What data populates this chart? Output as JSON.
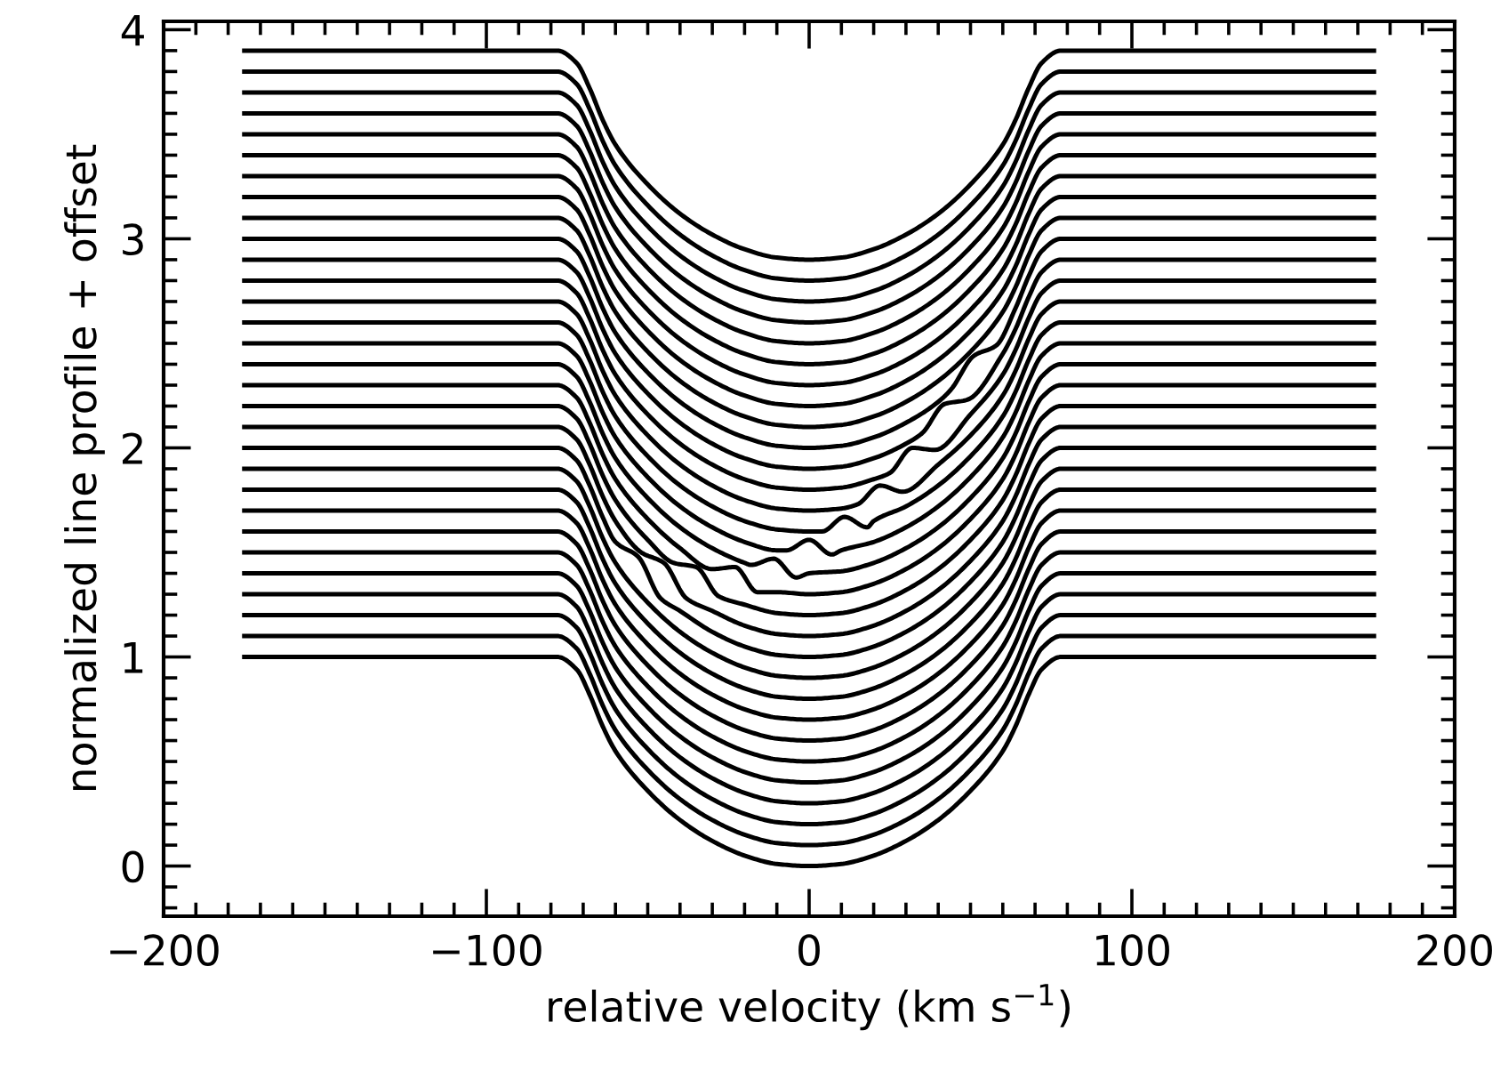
{
  "chart_data": {
    "type": "line",
    "xlabel": "relative velocity (km s$^{−1}$)",
    "ylabel": "normalized line profile + offset",
    "xlim": [
      -200,
      200
    ],
    "ylim": [
      -0.24,
      4.04
    ],
    "grid": false,
    "line_style": "solid",
    "xticks": [
      -200,
      {
        "value": -190,
        "label": null
      },
      {
        "value": -180,
        "label": null
      },
      {
        "value": -170,
        "label": null
      },
      {
        "value": -160,
        "label": null
      },
      {
        "value": -150,
        "label": null
      },
      {
        "value": -140,
        "label": null
      },
      {
        "value": -130,
        "label": null
      },
      {
        "value": -120,
        "label": null
      },
      {
        "value": -110,
        "label": null
      },
      -100,
      {
        "value": -90,
        "label": null
      },
      {
        "value": -80,
        "label": null
      },
      {
        "value": -70,
        "label": null
      },
      {
        "value": -60,
        "label": null
      },
      {
        "value": -50,
        "label": null
      },
      {
        "value": -40,
        "label": null
      },
      {
        "value": -30,
        "label": null
      },
      {
        "value": -20,
        "label": null
      },
      {
        "value": -10,
        "label": null
      },
      0,
      {
        "value": 10,
        "label": null
      },
      {
        "value": 20,
        "label": null
      },
      {
        "value": 30,
        "label": null
      },
      {
        "value": 40,
        "label": null
      },
      {
        "value": 50,
        "label": null
      },
      {
        "value": 60,
        "label": null
      },
      {
        "value": 70,
        "label": null
      },
      {
        "value": 80,
        "label": null
      },
      {
        "value": 90,
        "label": null
      },
      100,
      {
        "value": 110,
        "label": null
      },
      {
        "value": 120,
        "label": null
      },
      {
        "value": 130,
        "label": null
      },
      {
        "value": 140,
        "label": null
      },
      {
        "value": 150,
        "label": null
      },
      {
        "value": 160,
        "label": null
      },
      {
        "value": 170,
        "label": null
      },
      {
        "value": 180,
        "label": null
      },
      {
        "value": 190,
        "label": null
      },
      200
    ],
    "yticks": [
      {
        "value": -0.2,
        "label": null
      },
      {
        "value": -0.1,
        "label": null
      },
      0,
      {
        "value": 0.1,
        "label": null
      },
      {
        "value": 0.2,
        "label": null
      },
      {
        "value": 0.3,
        "label": null
      },
      {
        "value": 0.4,
        "label": null
      },
      {
        "value": 0.5,
        "label": null
      },
      {
        "value": 0.6,
        "label": null
      },
      {
        "value": 0.7,
        "label": null
      },
      {
        "value": 0.8,
        "label": null
      },
      {
        "value": 0.9,
        "label": null
      },
      1,
      {
        "value": 1.1,
        "label": null
      },
      {
        "value": 1.2,
        "label": null
      },
      {
        "value": 1.3,
        "label": null
      },
      {
        "value": 1.4,
        "label": null
      },
      {
        "value": 1.5,
        "label": null
      },
      {
        "value": 1.6,
        "label": null
      },
      {
        "value": 1.7,
        "label": null
      },
      {
        "value": 1.8,
        "label": null
      },
      {
        "value": 1.9,
        "label": null
      },
      2,
      {
        "value": 2.1,
        "label": null
      },
      {
        "value": 2.2,
        "label": null
      },
      {
        "value": 2.3,
        "label": null
      },
      {
        "value": 2.4,
        "label": null
      },
      {
        "value": 2.5,
        "label": null
      },
      {
        "value": 2.6,
        "label": null
      },
      {
        "value": 2.7,
        "label": null
      },
      {
        "value": 2.8,
        "label": null
      },
      {
        "value": 2.9,
        "label": null
      },
      3,
      {
        "value": 3.1,
        "label": null
      },
      {
        "value": 3.2,
        "label": null
      },
      {
        "value": 3.3,
        "label": null
      },
      {
        "value": 3.4,
        "label": null
      },
      {
        "value": 3.5,
        "label": null
      },
      {
        "value": 3.6,
        "label": null
      },
      {
        "value": 3.7,
        "label": null
      },
      {
        "value": 3.8,
        "label": null
      },
      {
        "value": 3.9,
        "label": null
      },
      4
    ],
    "x": [
      -175,
      -78,
      -72,
      -68,
      -64,
      -60,
      -50,
      -40,
      -30,
      -20,
      -10,
      0,
      10,
      20,
      30,
      40,
      50,
      60,
      64,
      68,
      72,
      78,
      175
    ],
    "series": [
      {
        "color": "#000000",
        "values": [
          1.0,
          1.0,
          0.94,
          0.82,
          0.67,
          0.55,
          0.36,
          0.22,
          0.12,
          0.05,
          0.01,
          0.0,
          0.01,
          0.05,
          0.12,
          0.22,
          0.36,
          0.55,
          0.67,
          0.82,
          0.94,
          1.0,
          1.0
        ]
      },
      {
        "color": "#000000",
        "values": [
          1.1,
          1.1,
          1.04,
          0.92,
          0.77,
          0.65,
          0.46,
          0.32,
          0.22,
          0.15,
          0.11,
          0.1,
          0.11,
          0.15,
          0.22,
          0.32,
          0.46,
          0.65,
          0.77,
          0.92,
          1.04,
          1.1,
          1.1
        ]
      },
      {
        "color": "#000000",
        "values": [
          1.2,
          1.2,
          1.14,
          1.02,
          0.87,
          0.75,
          0.56,
          0.42,
          0.32,
          0.25,
          0.21,
          0.2,
          0.21,
          0.25,
          0.32,
          0.42,
          0.56,
          0.75,
          0.87,
          1.02,
          1.14,
          1.2,
          1.2
        ]
      },
      {
        "color": "#000000",
        "values": [
          1.3,
          1.3,
          1.24,
          1.12,
          0.97,
          0.85,
          0.66,
          0.52,
          0.42,
          0.35,
          0.31,
          0.3,
          0.31,
          0.35,
          0.42,
          0.52,
          0.66,
          0.85,
          0.97,
          1.12,
          1.24,
          1.3,
          1.3
        ]
      },
      {
        "color": "#000000",
        "values": [
          1.4,
          1.4,
          1.34,
          1.22,
          1.07,
          0.95,
          0.76,
          0.62,
          0.52,
          0.45,
          0.41,
          0.4,
          0.41,
          0.45,
          0.52,
          0.62,
          0.76,
          0.95,
          1.07,
          1.22,
          1.34,
          1.4,
          1.4
        ]
      },
      {
        "color": "#000000",
        "values": [
          1.5,
          1.5,
          1.44,
          1.32,
          1.17,
          1.05,
          0.86,
          0.72,
          0.62,
          0.55,
          0.51,
          0.5,
          0.51,
          0.55,
          0.62,
          0.72,
          0.86,
          1.05,
          1.17,
          1.32,
          1.44,
          1.5,
          1.5
        ]
      },
      {
        "color": "#000000",
        "values": [
          1.6,
          1.6,
          1.54,
          1.42,
          1.27,
          1.15,
          0.96,
          0.82,
          0.72,
          0.65,
          0.61,
          0.6,
          0.61,
          0.65,
          0.72,
          0.82,
          0.96,
          1.15,
          1.27,
          1.42,
          1.54,
          1.6,
          1.6
        ]
      },
      {
        "color": "#000000",
        "values": [
          1.7,
          1.7,
          1.64,
          1.52,
          1.37,
          1.25,
          1.06,
          0.92,
          0.82,
          0.75,
          0.71,
          0.7,
          0.71,
          0.75,
          0.82,
          0.92,
          1.06,
          1.25,
          1.37,
          1.52,
          1.64,
          1.7,
          1.7
        ]
      },
      {
        "color": "#000000",
        "values": [
          1.8,
          1.8,
          1.74,
          1.62,
          1.47,
          1.35,
          1.16,
          1.02,
          0.92,
          0.85,
          0.81,
          0.8,
          0.81,
          0.85,
          0.92,
          1.02,
          1.16,
          1.35,
          1.47,
          1.62,
          1.74,
          1.8,
          1.8
        ]
      },
      {
        "color": "#000000",
        "values": [
          1.9,
          1.9,
          1.84,
          1.72,
          1.57,
          1.45,
          1.26,
          1.12,
          1.02,
          0.95,
          0.91,
          0.9,
          0.91,
          0.95,
          1.02,
          1.12,
          1.26,
          1.45,
          1.57,
          1.72,
          1.84,
          1.9,
          1.9
        ]
      },
      {
        "color": "#000000",
        "x": [
          -175,
          -78,
          -72,
          -68,
          -64,
          -60,
          -53,
          -46,
          -40,
          -30,
          -20,
          -10,
          0,
          10,
          20,
          30,
          40,
          50,
          60,
          64,
          68,
          72,
          78,
          175
        ],
        "values": [
          2.0,
          2.0,
          1.94,
          1.82,
          1.67,
          1.55,
          1.48,
          1.28,
          1.22,
          1.12,
          1.05,
          1.01,
          1.0,
          1.01,
          1.05,
          1.12,
          1.22,
          1.36,
          1.55,
          1.67,
          1.82,
          1.94,
          2.0,
          2.0
        ]
      },
      {
        "color": "#000000",
        "x": [
          -175,
          -78,
          -72,
          -68,
          -64,
          -60,
          -52,
          -45,
          -38,
          -30,
          -20,
          -10,
          0,
          10,
          20,
          30,
          40,
          50,
          60,
          64,
          68,
          72,
          78,
          175
        ],
        "values": [
          2.1,
          2.1,
          2.04,
          1.92,
          1.77,
          1.65,
          1.5,
          1.45,
          1.28,
          1.22,
          1.15,
          1.11,
          1.1,
          1.11,
          1.15,
          1.22,
          1.32,
          1.46,
          1.65,
          1.77,
          1.92,
          2.04,
          2.1,
          2.1
        ]
      },
      {
        "color": "#000000",
        "x": [
          -175,
          -78,
          -72,
          -68,
          -64,
          -60,
          -50,
          -42,
          -35,
          -28,
          -20,
          -10,
          0,
          10,
          20,
          30,
          40,
          50,
          60,
          64,
          68,
          72,
          78,
          175
        ],
        "values": [
          2.2,
          2.2,
          2.14,
          2.02,
          1.87,
          1.75,
          1.56,
          1.45,
          1.43,
          1.29,
          1.25,
          1.21,
          1.2,
          1.21,
          1.25,
          1.32,
          1.42,
          1.56,
          1.75,
          1.87,
          2.02,
          2.14,
          2.2,
          2.2
        ]
      },
      {
        "color": "#000000",
        "x": [
          -175,
          -78,
          -72,
          -68,
          -64,
          -60,
          -50,
          -40,
          -30,
          -23,
          -16,
          -10,
          0,
          10,
          20,
          30,
          40,
          50,
          60,
          64,
          68,
          72,
          78,
          175
        ],
        "values": [
          2.3,
          2.3,
          2.24,
          2.12,
          1.97,
          1.85,
          1.66,
          1.52,
          1.42,
          1.43,
          1.31,
          1.31,
          1.3,
          1.31,
          1.35,
          1.42,
          1.52,
          1.66,
          1.85,
          1.97,
          2.12,
          2.24,
          2.3,
          2.3
        ]
      },
      {
        "color": "#000000",
        "x": [
          -175,
          -78,
          -72,
          -68,
          -64,
          -60,
          -50,
          -40,
          -30,
          -20,
          -18,
          -11,
          -4,
          0,
          10,
          20,
          30,
          40,
          50,
          60,
          64,
          68,
          72,
          78,
          175
        ],
        "values": [
          2.4,
          2.4,
          2.34,
          2.22,
          2.07,
          1.95,
          1.76,
          1.62,
          1.52,
          1.45,
          1.44,
          1.47,
          1.38,
          1.4,
          1.41,
          1.45,
          1.52,
          1.62,
          1.76,
          1.95,
          2.07,
          2.22,
          2.34,
          2.4,
          2.4
        ]
      },
      {
        "color": "#000000",
        "x": [
          -175,
          -78,
          -72,
          -68,
          -64,
          -60,
          -50,
          -40,
          -30,
          -20,
          -10,
          -7,
          0,
          7,
          10,
          20,
          30,
          40,
          50,
          60,
          64,
          68,
          72,
          78,
          175
        ],
        "values": [
          2.5,
          2.5,
          2.44,
          2.32,
          2.17,
          2.05,
          1.86,
          1.72,
          1.62,
          1.55,
          1.51,
          1.51,
          1.56,
          1.49,
          1.51,
          1.55,
          1.62,
          1.72,
          1.86,
          2.05,
          2.17,
          2.32,
          2.44,
          2.5,
          2.5
        ]
      },
      {
        "color": "#000000",
        "x": [
          -175,
          -78,
          -72,
          -68,
          -64,
          -60,
          -50,
          -40,
          -30,
          -20,
          -10,
          0,
          4,
          11,
          18,
          20,
          30,
          40,
          50,
          60,
          64,
          68,
          72,
          78,
          175
        ],
        "values": [
          2.6,
          2.6,
          2.54,
          2.42,
          2.27,
          2.15,
          1.96,
          1.82,
          1.72,
          1.65,
          1.61,
          1.6,
          1.6,
          1.67,
          1.62,
          1.65,
          1.72,
          1.82,
          1.96,
          2.15,
          2.27,
          2.42,
          2.54,
          2.6,
          2.6
        ]
      },
      {
        "color": "#000000",
        "x": [
          -175,
          -78,
          -72,
          -68,
          -64,
          -60,
          -50,
          -40,
          -30,
          -20,
          -10,
          0,
          10,
          15,
          22,
          29,
          40,
          50,
          60,
          64,
          68,
          72,
          78,
          175
        ],
        "values": [
          2.7,
          2.7,
          2.64,
          2.52,
          2.37,
          2.25,
          2.06,
          1.92,
          1.82,
          1.75,
          1.71,
          1.7,
          1.71,
          1.73,
          1.82,
          1.79,
          1.92,
          2.06,
          2.25,
          2.37,
          2.52,
          2.64,
          2.7,
          2.7
        ]
      },
      {
        "color": "#000000",
        "x": [
          -175,
          -78,
          -72,
          -68,
          -64,
          -60,
          -50,
          -40,
          -30,
          -20,
          -10,
          0,
          10,
          20,
          25,
          32,
          39,
          50,
          60,
          64,
          68,
          72,
          78,
          175
        ],
        "values": [
          2.8,
          2.8,
          2.74,
          2.62,
          2.47,
          2.35,
          2.16,
          2.02,
          1.92,
          1.85,
          1.81,
          1.8,
          1.81,
          1.85,
          1.88,
          2.0,
          1.99,
          2.16,
          2.35,
          2.47,
          2.62,
          2.74,
          2.8,
          2.8
        ]
      },
      {
        "color": "#000000",
        "x": [
          -175,
          -78,
          -72,
          -68,
          -64,
          -60,
          -50,
          -40,
          -30,
          -20,
          -10,
          0,
          10,
          20,
          30,
          35,
          42,
          49,
          60,
          64,
          68,
          72,
          78,
          175
        ],
        "values": [
          2.9,
          2.9,
          2.84,
          2.72,
          2.57,
          2.45,
          2.26,
          2.12,
          2.02,
          1.95,
          1.91,
          1.9,
          1.91,
          1.95,
          2.02,
          2.07,
          2.21,
          2.23,
          2.45,
          2.57,
          2.72,
          2.84,
          2.9,
          2.9
        ]
      },
      {
        "color": "#000000",
        "x": [
          -175,
          -78,
          -72,
          -68,
          -64,
          -60,
          -50,
          -40,
          -30,
          -20,
          -10,
          0,
          10,
          20,
          30,
          40,
          44,
          51,
          58,
          64,
          68,
          72,
          78,
          175
        ],
        "values": [
          3.0,
          3.0,
          2.94,
          2.82,
          2.67,
          2.55,
          2.36,
          2.22,
          2.12,
          2.05,
          2.01,
          2.0,
          2.01,
          2.05,
          2.12,
          2.22,
          2.28,
          2.44,
          2.49,
          2.67,
          2.82,
          2.94,
          3.0,
          3.0
        ]
      },
      {
        "color": "#000000",
        "values": [
          3.1,
          3.1,
          3.04,
          2.92,
          2.77,
          2.65,
          2.46,
          2.32,
          2.22,
          2.15,
          2.11,
          2.1,
          2.11,
          2.15,
          2.22,
          2.32,
          2.46,
          2.65,
          2.77,
          2.92,
          3.04,
          3.1,
          3.1
        ]
      },
      {
        "color": "#000000",
        "values": [
          3.2,
          3.2,
          3.14,
          3.02,
          2.87,
          2.75,
          2.56,
          2.42,
          2.32,
          2.25,
          2.21,
          2.2,
          2.21,
          2.25,
          2.32,
          2.42,
          2.56,
          2.75,
          2.87,
          3.02,
          3.14,
          3.2,
          3.2
        ]
      },
      {
        "color": "#000000",
        "values": [
          3.3,
          3.3,
          3.24,
          3.12,
          2.97,
          2.85,
          2.66,
          2.52,
          2.42,
          2.35,
          2.31,
          2.3,
          2.31,
          2.35,
          2.42,
          2.52,
          2.66,
          2.85,
          2.97,
          3.12,
          3.24,
          3.3,
          3.3
        ]
      },
      {
        "color": "#000000",
        "values": [
          3.4,
          3.4,
          3.34,
          3.22,
          3.07,
          2.95,
          2.76,
          2.62,
          2.52,
          2.45,
          2.41,
          2.4,
          2.41,
          2.45,
          2.52,
          2.62,
          2.76,
          2.95,
          3.07,
          3.22,
          3.34,
          3.4,
          3.4
        ]
      },
      {
        "color": "#000000",
        "values": [
          3.5,
          3.5,
          3.44,
          3.32,
          3.17,
          3.05,
          2.86,
          2.72,
          2.62,
          2.55,
          2.51,
          2.5,
          2.51,
          2.55,
          2.62,
          2.72,
          2.86,
          3.05,
          3.17,
          3.32,
          3.44,
          3.5,
          3.5
        ]
      },
      {
        "color": "#000000",
        "values": [
          3.6,
          3.6,
          3.54,
          3.42,
          3.27,
          3.15,
          2.96,
          2.82,
          2.72,
          2.65,
          2.61,
          2.6,
          2.61,
          2.65,
          2.72,
          2.82,
          2.96,
          3.15,
          3.27,
          3.42,
          3.54,
          3.6,
          3.6
        ]
      },
      {
        "color": "#000000",
        "values": [
          3.7,
          3.7,
          3.64,
          3.52,
          3.37,
          3.25,
          3.06,
          2.92,
          2.82,
          2.75,
          2.71,
          2.7,
          2.71,
          2.75,
          2.82,
          2.92,
          3.06,
          3.25,
          3.37,
          3.52,
          3.64,
          3.7,
          3.7
        ]
      },
      {
        "color": "#000000",
        "values": [
          3.8,
          3.8,
          3.74,
          3.62,
          3.47,
          3.35,
          3.16,
          3.02,
          2.92,
          2.85,
          2.81,
          2.8,
          2.81,
          2.85,
          2.92,
          3.02,
          3.16,
          3.35,
          3.47,
          3.62,
          3.74,
          3.8,
          3.8
        ]
      },
      {
        "color": "#000000",
        "values": [
          3.9,
          3.9,
          3.84,
          3.72,
          3.57,
          3.45,
          3.26,
          3.12,
          3.02,
          2.95,
          2.91,
          2.9,
          2.91,
          2.95,
          3.02,
          3.12,
          3.26,
          3.45,
          3.57,
          3.72,
          3.84,
          3.9,
          3.9
        ]
      }
    ]
  }
}
